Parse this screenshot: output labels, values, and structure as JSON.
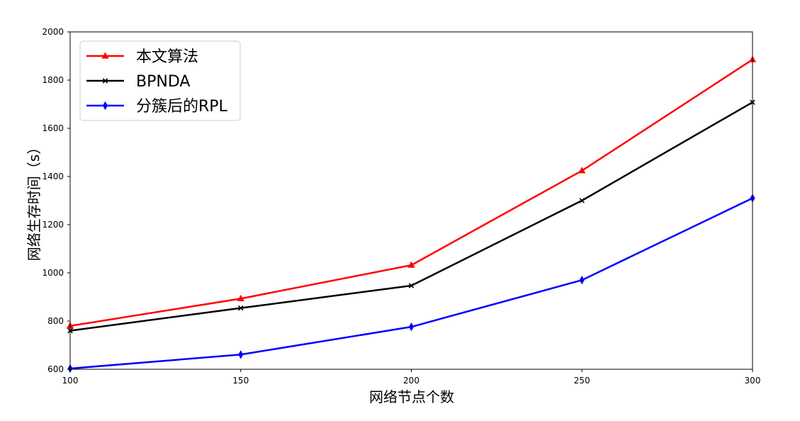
{
  "chart_data": {
    "type": "line",
    "title": "",
    "xlabel": "网络节点个数",
    "ylabel": "网络生存时间（s）",
    "x": [
      100,
      150,
      200,
      250,
      300
    ],
    "xlim": [
      100,
      300
    ],
    "ylim": [
      600,
      2000
    ],
    "xticks": [
      "100",
      "150",
      "200",
      "250",
      "300"
    ],
    "yticks": [
      "600",
      "800",
      "1000",
      "1200",
      "1400",
      "1600",
      "1800",
      "2000"
    ],
    "grid": false,
    "legend_position": "top-left",
    "series": [
      {
        "name": "本文算法",
        "color": "#ff0000",
        "marker": "triangle",
        "values": [
          780,
          893,
          1032,
          1424,
          1885
        ]
      },
      {
        "name": "BPNDA",
        "color": "#000000",
        "marker": "x",
        "values": [
          760,
          854,
          947,
          1300,
          1708
        ]
      },
      {
        "name": "分簇后的RPL",
        "color": "#0000ff",
        "marker": "diamond",
        "values": [
          603,
          661,
          776,
          970,
          1310
        ]
      }
    ]
  }
}
